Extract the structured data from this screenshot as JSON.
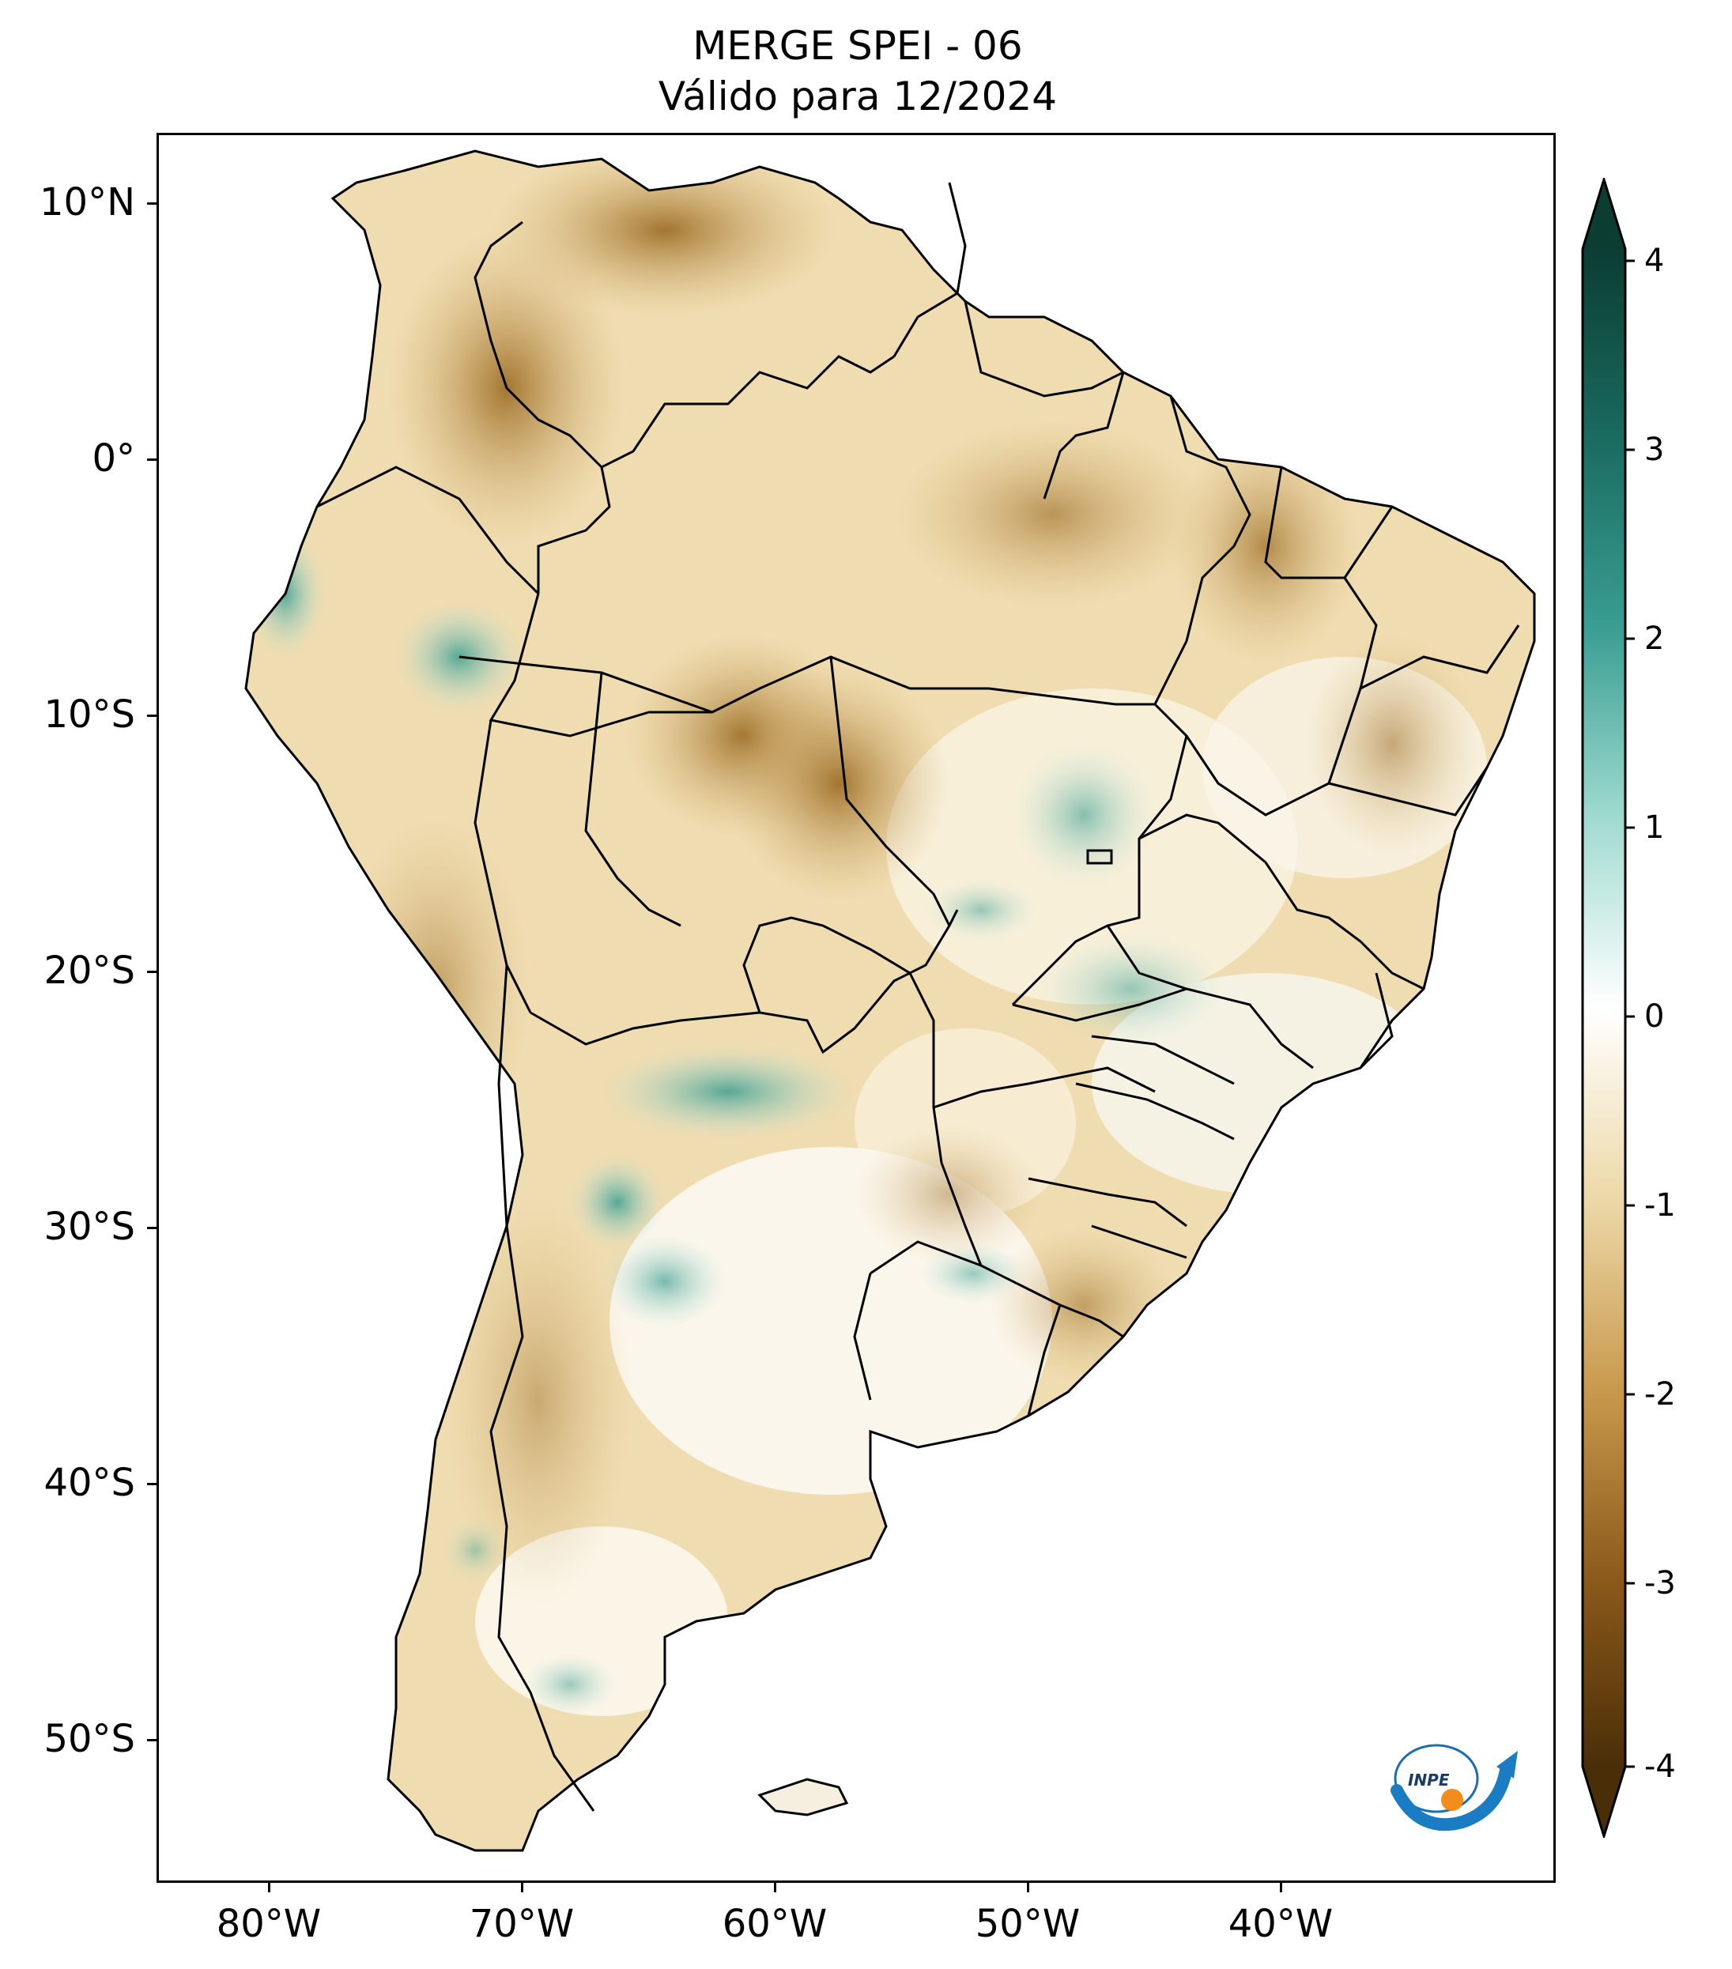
{
  "title": {
    "line1": "MERGE   SPEI - 06",
    "line2": "Válido para 12/2024"
  },
  "axes": {
    "lat_labels": [
      "10°N",
      "0°",
      "10°S",
      "20°S",
      "30°S",
      "40°S",
      "50°S"
    ],
    "lon_labels": [
      "80°W",
      "70°W",
      "60°W",
      "50°W",
      "40°W"
    ]
  },
  "colorbar": {
    "ticks": [
      "4",
      "3",
      "2",
      "1",
      "0",
      "-1",
      "-2",
      "-3",
      "-4"
    ],
    "min": -4,
    "max": 4,
    "colors": {
      "extreme_wet": "#0b3d33",
      "wet": "#2a8f84",
      "light_wet": "#9fdad0",
      "neutral": "#ffffff",
      "light_dry": "#ecd9a8",
      "dry": "#c08a3c",
      "extreme_dry": "#5a3a0e"
    }
  },
  "logo": {
    "text": "INPE"
  }
}
